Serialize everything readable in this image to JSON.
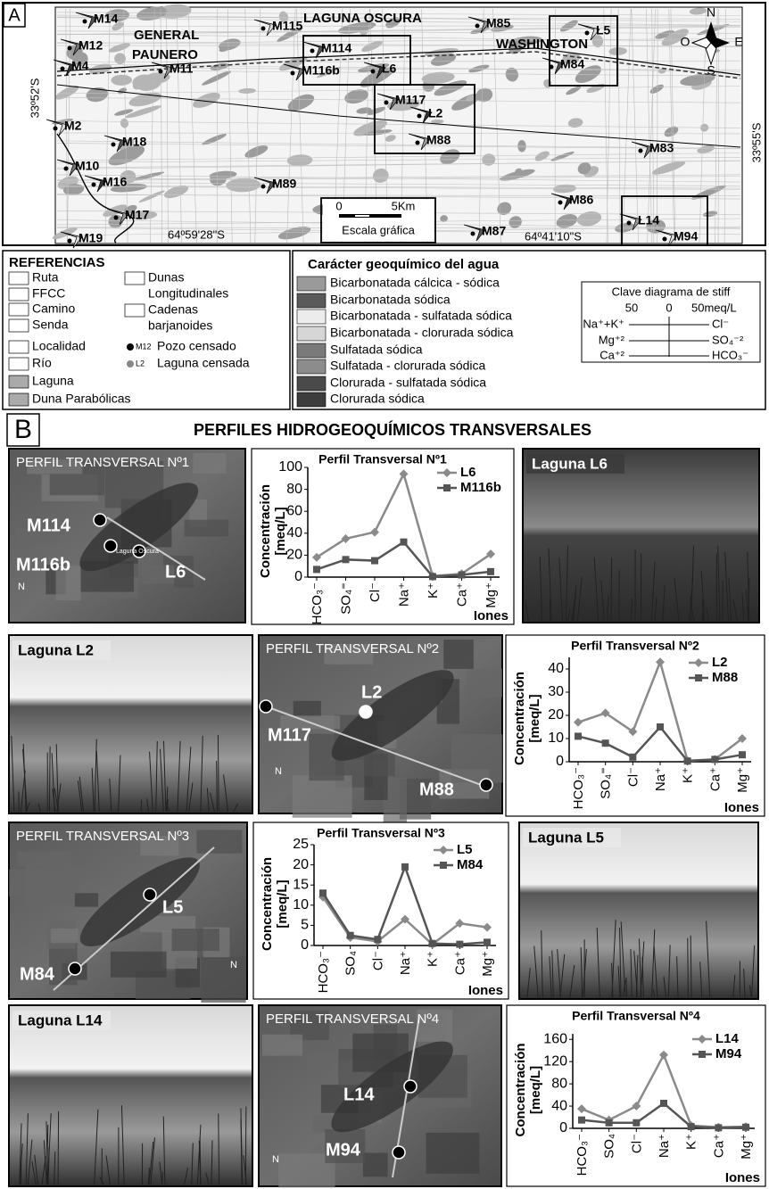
{
  "panel_a": {
    "letter": "A",
    "map_labels": [
      "M14",
      "M12",
      "M4",
      "M11",
      "M115",
      "M114",
      "M116b",
      "L6",
      "M85",
      "L5",
      "M84",
      "M117",
      "L2",
      "M88",
      "M2",
      "M18",
      "M10",
      "M16",
      "M17",
      "M19",
      "M89",
      "M83",
      "M86",
      "L14",
      "M94",
      "M87"
    ],
    "places": [
      "GENERAL",
      "PAUNERO",
      "LAGUNA OSCURA",
      "WASHINGTON"
    ],
    "coordinates": [
      "33º52'S",
      "33º55'S",
      "64º59'28\"S",
      "64º41'10\"S"
    ],
    "compass": [
      "N",
      "O",
      "E",
      "S"
    ],
    "scale": [
      "0",
      "5Km",
      "Escala gráfica"
    ]
  },
  "references": {
    "title": "REFERENCIAS",
    "column_1": [
      "Ruta",
      "FFCC",
      "Camino",
      "Senda",
      "Localidad",
      "Río",
      "Laguna",
      "Duna Parabólicas"
    ],
    "column_2": [
      [
        "Dunas",
        "Longitudinales"
      ],
      [
        "Cadenas",
        "barjanoides"
      ],
      [
        "M12",
        "Pozo censado"
      ],
      [
        "L2",
        "Laguna censada"
      ]
    ]
  },
  "geochemistry": {
    "title": "Carácter geoquímico del agua",
    "items": [
      "Bicarbonatada cálcica - sódica",
      "Bicarbonatada sódica",
      "Bicarbonatada - sulfatada sódica",
      "Bicarbonatada - clorurada sódica",
      "Sulfatada sódica",
      "Sulfatada - clorurada sódica",
      "Clorurada - sulfatada sódica",
      "Clorurada sódica"
    ],
    "colors": [
      "#9a9a9a",
      "#5a5a5a",
      "#ececec",
      "#d6d6d6",
      "#7a7a7a",
      "#8c8c8c",
      "#4a4a4a",
      "#3c3c3c"
    ]
  },
  "stiff_key": {
    "title": "Clave diagrama de stiff",
    "scale": [
      "50",
      "0",
      "50meq/L"
    ],
    "left": [
      "Na⁺+K⁺",
      "Mg⁺²",
      "Ca⁺²"
    ],
    "right": [
      "Cl⁻",
      "SO₄⁻²",
      "HCO₃⁻"
    ]
  },
  "panel_b": {
    "letter": "B",
    "title": "PERFILES HIDROGEOQUÍMICOS TRANSVERSALES",
    "photos": [
      "Laguna L6",
      "Laguna L2",
      "Laguna L5",
      "Laguna L14"
    ],
    "profiles": [
      {
        "title": "PERFIL TRANSVERSAL Nº1",
        "labels": [
          "M114",
          "M116b",
          "L6",
          "Laguna Oscura",
          "N"
        ]
      },
      {
        "title": "PERFIL TRANSVERSAL Nº2",
        "labels": [
          "L2",
          "M117",
          "M88",
          "N"
        ]
      },
      {
        "title": "PERFIL TRANSVERSAL Nº3",
        "labels": [
          "L5",
          "M84",
          "N"
        ]
      },
      {
        "title": "PERFIL TRANSVERSAL Nº4",
        "labels": [
          "L14",
          "M94",
          "N"
        ]
      }
    ]
  },
  "chart_data": [
    {
      "type": "line",
      "title": "Perfil Transversal Nº1",
      "y_label": [
        "Concentración",
        "[meq/L]"
      ],
      "x_label": "Iones",
      "categories": [
        "HCO₃⁻",
        "SO₄⁼",
        "Cl⁻",
        "Na⁺",
        "K⁺",
        "Ca⁺",
        "Mg⁺"
      ],
      "series": [
        {
          "name": "L6",
          "color": "#8a8a8a",
          "marker": "diamond",
          "values": [
            18,
            35,
            41,
            94,
            1,
            3,
            21
          ]
        },
        {
          "name": "M116b",
          "color": "#555555",
          "marker": "square",
          "values": [
            7,
            16,
            15,
            32,
            0.5,
            2,
            5
          ]
        }
      ],
      "ylim": [
        0,
        100
      ],
      "yticks": [
        0,
        20,
        40,
        60,
        80,
        100
      ]
    },
    {
      "type": "line",
      "title": "Perfil Transversal Nº2",
      "y_label": [
        "Concentración",
        "[meq/L]"
      ],
      "x_label": "Iones",
      "categories": [
        "HCO₃⁻",
        "SO₄⁼",
        "Cl⁻",
        "Na⁺",
        "K⁺",
        "Ca⁺",
        "Mg⁺"
      ],
      "series": [
        {
          "name": "L2",
          "color": "#8a8a8a",
          "marker": "diamond",
          "values": [
            17,
            21,
            13,
            43,
            0.5,
            1,
            10
          ]
        },
        {
          "name": "M88",
          "color": "#555555",
          "marker": "square",
          "values": [
            11,
            8,
            2,
            15,
            0.3,
            1,
            3
          ]
        }
      ],
      "ylim": [
        0,
        45
      ],
      "yticks": [
        0,
        10,
        20,
        30,
        40
      ]
    },
    {
      "type": "line",
      "title": "Perfil Transversal Nº3",
      "y_label": [
        "Concentración",
        "[meq/L]"
      ],
      "x_label": "Iones",
      "categories": [
        "HCO₃⁻",
        "SO₄",
        "Cl⁻",
        "Na⁺",
        "K⁺",
        "Ca⁺",
        "Mg⁺"
      ],
      "series": [
        {
          "name": "L5",
          "color": "#8a8a8a",
          "marker": "diamond",
          "values": [
            12,
            2,
            1,
            6.5,
            0.3,
            5.5,
            4.5
          ]
        },
        {
          "name": "M84",
          "color": "#555555",
          "marker": "square",
          "values": [
            13,
            2.5,
            1.5,
            19.5,
            0.5,
            0.3,
            0.8
          ]
        }
      ],
      "ylim": [
        0,
        25
      ],
      "yticks": [
        0,
        5,
        10,
        15,
        20,
        25
      ]
    },
    {
      "type": "line",
      "title": "Perfil Transversal Nº4",
      "y_label": [
        "Concentración",
        "[meq/L]"
      ],
      "x_label": "Iones",
      "categories": [
        "HCO₃⁻",
        "SO₄",
        "Cl⁻",
        "Na⁺",
        "K⁺",
        "Ca⁺",
        "Mg⁺"
      ],
      "series": [
        {
          "name": "L14",
          "color": "#8a8a8a",
          "marker": "diamond",
          "values": [
            35,
            15,
            40,
            132,
            5,
            2,
            3
          ]
        },
        {
          "name": "M94",
          "color": "#555555",
          "marker": "square",
          "values": [
            15,
            10,
            10,
            45,
            3,
            1,
            2
          ]
        }
      ],
      "ylim": [
        0,
        170
      ],
      "yticks": [
        0,
        40,
        80,
        120,
        160
      ]
    }
  ]
}
